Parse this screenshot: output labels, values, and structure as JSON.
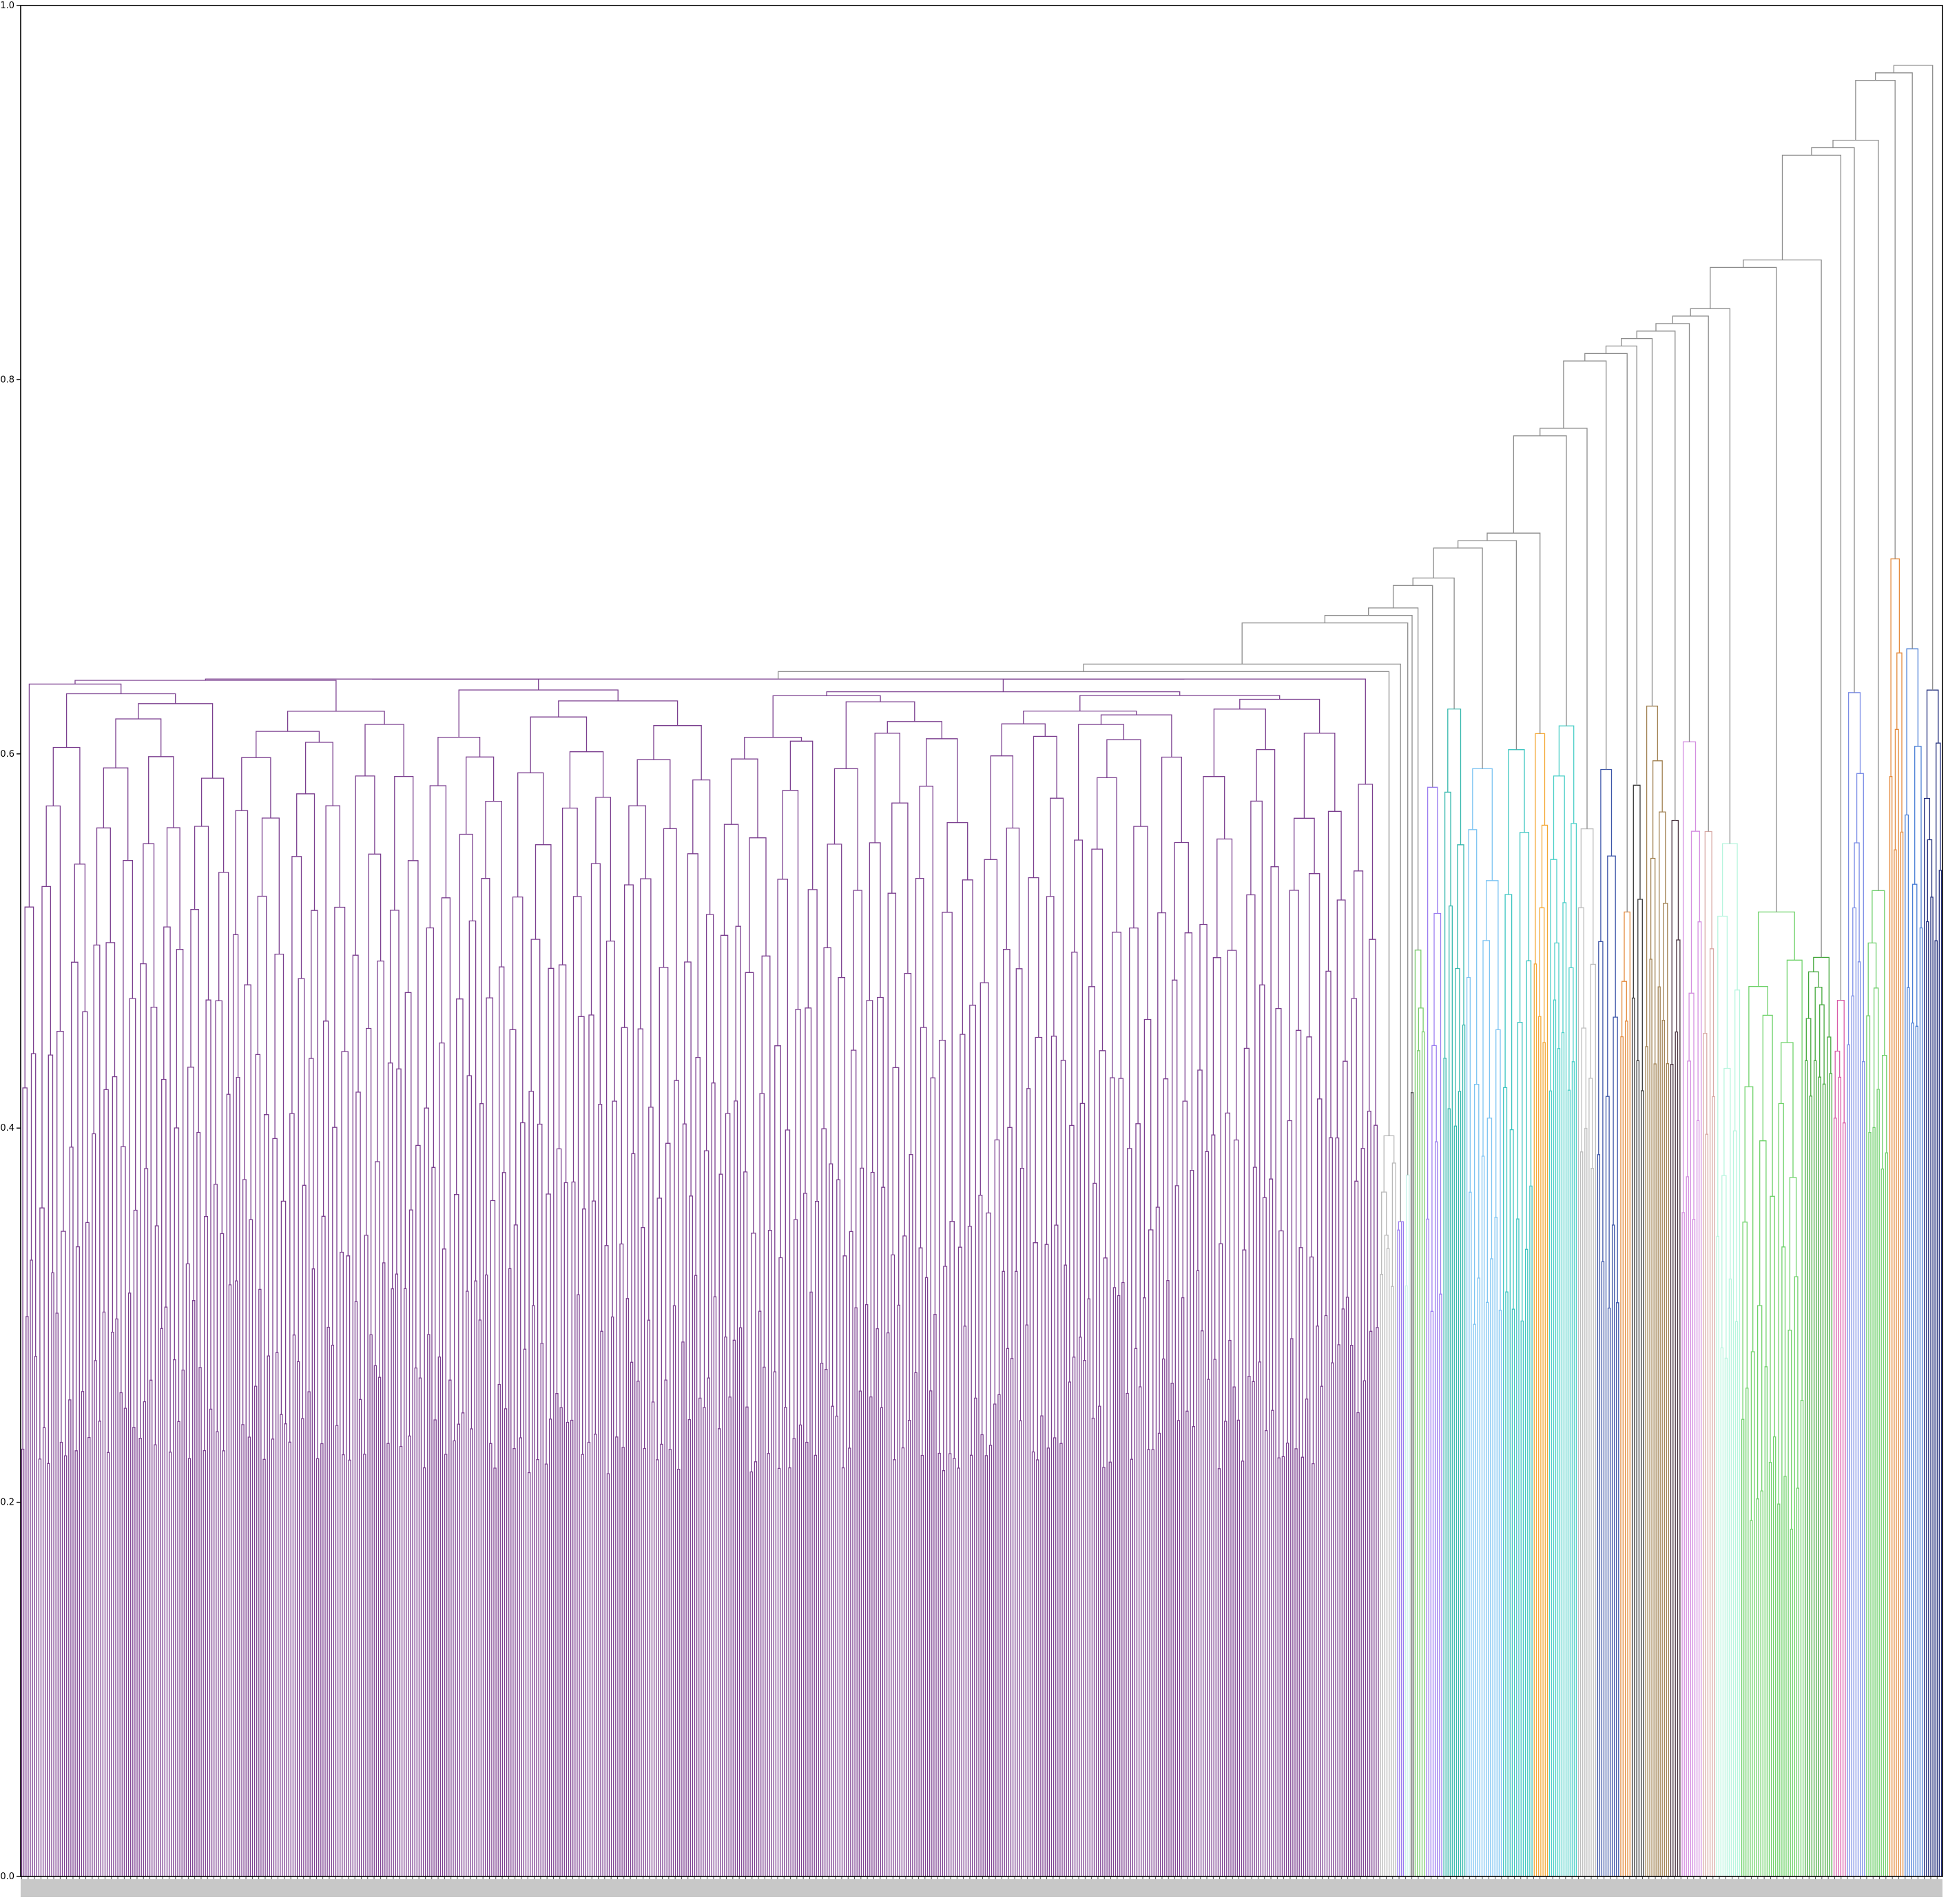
{
  "chart_data": {
    "type": "dendrogram",
    "title": "",
    "xlabel": "",
    "ylabel": "",
    "ylim": [
      0.0,
      1.0
    ],
    "yticks": [
      "0.0",
      "0.2",
      "0.4",
      "0.6",
      "0.8",
      "1.0"
    ],
    "grid": false,
    "legend": "none",
    "leaf_count_estimate": 900,
    "leaf_labels_note": "leaf labels rendered as dense, rotated, illegible text along the x axis",
    "colors": {
      "main_cluster": "#7b3f8f",
      "above_threshold": "#8c8c8c",
      "axes": "#000000"
    },
    "clusters": [
      {
        "color": "#7b3f8f",
        "leaf_fraction": [
          0.0,
          0.707
        ],
        "floor_height": 0.22,
        "top_height": 0.64
      },
      {
        "color": "#b8b8b8",
        "leaf_fraction": [
          0.707,
          0.716
        ],
        "floor_height": 0.32,
        "top_height": 0.42
      },
      {
        "color": "#9a7cf0",
        "leaf_fraction": [
          0.716,
          0.72
        ],
        "floor_height": 0.35,
        "top_height": 0.35
      },
      {
        "color": "#c7f2e9",
        "leaf_fraction": [
          0.72,
          0.723
        ],
        "floor_height": 0.32,
        "top_height": 0.48
      },
      {
        "color": "#3a3a3a",
        "leaf_fraction": [
          0.723,
          0.725
        ],
        "floor_height": 0.42,
        "top_height": 0.47
      },
      {
        "color": "#7acb6c",
        "leaf_fraction": [
          0.725,
          0.731
        ],
        "floor_height": 0.44,
        "top_height": 0.52
      },
      {
        "color": "#9a7cf0",
        "leaf_fraction": [
          0.731,
          0.74
        ],
        "floor_height": 0.3,
        "top_height": 0.66
      },
      {
        "color": "#35b8ad",
        "leaf_fraction": [
          0.74,
          0.752
        ],
        "floor_height": 0.4,
        "top_height": 0.66
      },
      {
        "color": "#7cc4f2",
        "leaf_fraction": [
          0.752,
          0.771
        ],
        "floor_height": 0.3,
        "top_height": 0.62
      },
      {
        "color": "#3cc5c0",
        "leaf_fraction": [
          0.771,
          0.787
        ],
        "floor_height": 0.3,
        "top_height": 0.64
      },
      {
        "color": "#f3a733",
        "leaf_fraction": [
          0.787,
          0.795
        ],
        "floor_height": 0.45,
        "top_height": 0.66
      },
      {
        "color": "#4ccfc8",
        "leaf_fraction": [
          0.795,
          0.81
        ],
        "floor_height": 0.42,
        "top_height": 0.64
      },
      {
        "color": "#bdbdbd",
        "leaf_fraction": [
          0.81,
          0.82
        ],
        "floor_height": 0.38,
        "top_height": 0.6
      },
      {
        "color": "#3d56a8",
        "leaf_fraction": [
          0.82,
          0.832
        ],
        "floor_height": 0.3,
        "top_height": 0.65
      },
      {
        "color": "#e48a3c",
        "leaf_fraction": [
          0.832,
          0.838
        ],
        "floor_height": 0.45,
        "top_height": 0.55
      },
      {
        "color": "#3a3a3a",
        "leaf_fraction": [
          0.838,
          0.845
        ],
        "floor_height": 0.42,
        "top_height": 0.65
      },
      {
        "color": "#a08050",
        "leaf_fraction": [
          0.845,
          0.858
        ],
        "floor_height": 0.43,
        "top_height": 0.66
      },
      {
        "color": "#4a3340",
        "leaf_fraction": [
          0.858,
          0.864
        ],
        "floor_height": 0.43,
        "top_height": 0.64
      },
      {
        "color": "#d48ee0",
        "leaf_fraction": [
          0.864,
          0.875
        ],
        "floor_height": 0.35,
        "top_height": 0.66
      },
      {
        "color": "#d8aaa6",
        "leaf_fraction": [
          0.875,
          0.882
        ],
        "floor_height": 0.4,
        "top_height": 0.62
      },
      {
        "color": "#b7f5de",
        "leaf_fraction": [
          0.882,
          0.895
        ],
        "floor_height": 0.28,
        "top_height": 0.6
      },
      {
        "color": "#6fd26a",
        "leaf_fraction": [
          0.895,
          0.928
        ],
        "floor_height": 0.19,
        "top_height": 0.53
      },
      {
        "color": "#44a83c",
        "leaf_fraction": [
          0.928,
          0.943
        ],
        "floor_height": 0.42,
        "top_height": 0.5
      },
      {
        "color": "#d95aa8",
        "leaf_fraction": [
          0.943,
          0.95
        ],
        "floor_height": 0.4,
        "top_height": 0.5
      },
      {
        "color": "#7b8de6",
        "leaf_fraction": [
          0.95,
          0.96
        ],
        "floor_height": 0.44,
        "top_height": 0.68
      },
      {
        "color": "#6fcf6b",
        "leaf_fraction": [
          0.96,
          0.972
        ],
        "floor_height": 0.38,
        "top_height": 0.55
      },
      {
        "color": "#e48a3c",
        "leaf_fraction": [
          0.972,
          0.98
        ],
        "floor_height": 0.55,
        "top_height": 0.75
      },
      {
        "color": "#4a7fd6",
        "leaf_fraction": [
          0.98,
          0.99
        ],
        "floor_height": 0.45,
        "top_height": 0.7
      },
      {
        "color": "#1e2b7a",
        "leaf_fraction": [
          0.99,
          1.0
        ],
        "floor_height": 0.5,
        "top_height": 0.67
      }
    ],
    "upper_merges": [
      {
        "x_fraction": 0.707,
        "height": 0.64
      },
      {
        "x_fraction": 0.748,
        "height": 0.67
      },
      {
        "x_fraction": 0.79,
        "height": 0.69
      },
      {
        "x_fraction": 0.83,
        "height": 0.71
      },
      {
        "x_fraction": 0.87,
        "height": 0.77
      },
      {
        "x_fraction": 0.89,
        "height": 0.81
      },
      {
        "x_fraction": 0.93,
        "height": 0.81
      },
      {
        "x_fraction": 0.96,
        "height": 0.82
      },
      {
        "x_fraction": 0.975,
        "height": 0.86
      },
      {
        "x_fraction": 0.985,
        "height": 0.92
      },
      {
        "x_fraction": 0.995,
        "height": 0.96
      }
    ]
  }
}
